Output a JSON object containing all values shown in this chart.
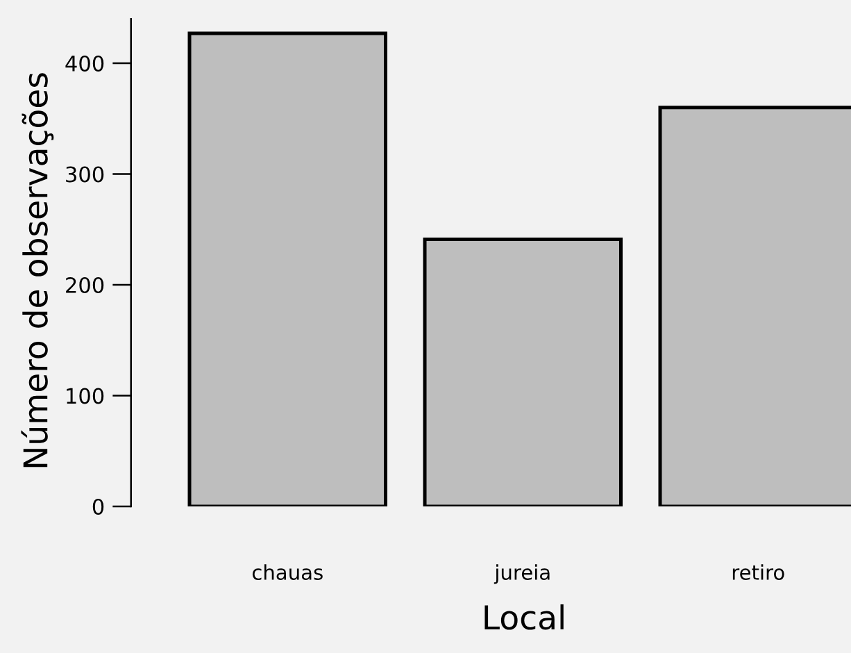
{
  "chart_data": {
    "type": "bar",
    "xlabel": "Local",
    "ylabel": "Número de observações",
    "categories": [
      "chauas",
      "jureia",
      "retiro"
    ],
    "values": [
      427,
      241,
      360
    ],
    "color": "#bebebe",
    "ylim": [
      0,
      440
    ],
    "yticks": [
      0,
      100,
      200,
      300,
      400
    ],
    "grid": false,
    "legend": false
  }
}
